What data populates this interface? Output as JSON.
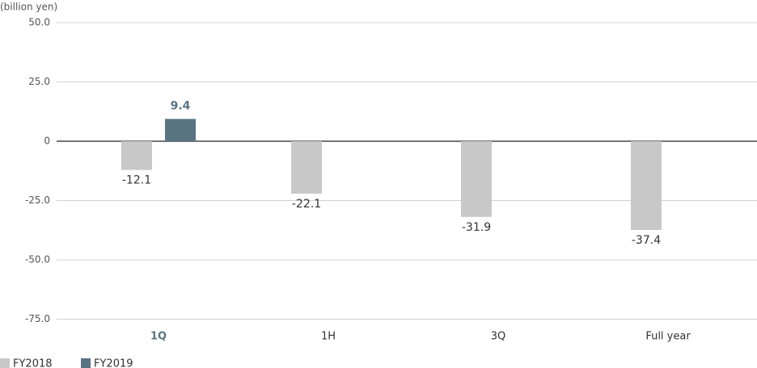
{
  "chart_data": {
    "type": "bar",
    "y_axis_label": "(billion yen)",
    "categories": [
      "1Q",
      "1H",
      "3Q",
      "Full year"
    ],
    "series": [
      {
        "name": "FY2018",
        "color": "#c8c8c8",
        "values": [
          -12.1,
          -22.1,
          -31.9,
          -37.4
        ]
      },
      {
        "name": "FY2019",
        "color": "#587482",
        "values": [
          9.4,
          null,
          null,
          null
        ]
      }
    ],
    "ylim": [
      -75,
      50
    ],
    "yticks": [
      {
        "value": 50,
        "label": "50.0"
      },
      {
        "value": 25,
        "label": "25.0"
      },
      0,
      {
        "value": -25,
        "label": "-25.0"
      },
      {
        "value": -50,
        "label": "-50.0"
      },
      {
        "value": -75,
        "label": "-75.0"
      }
    ],
    "grid": true
  }
}
